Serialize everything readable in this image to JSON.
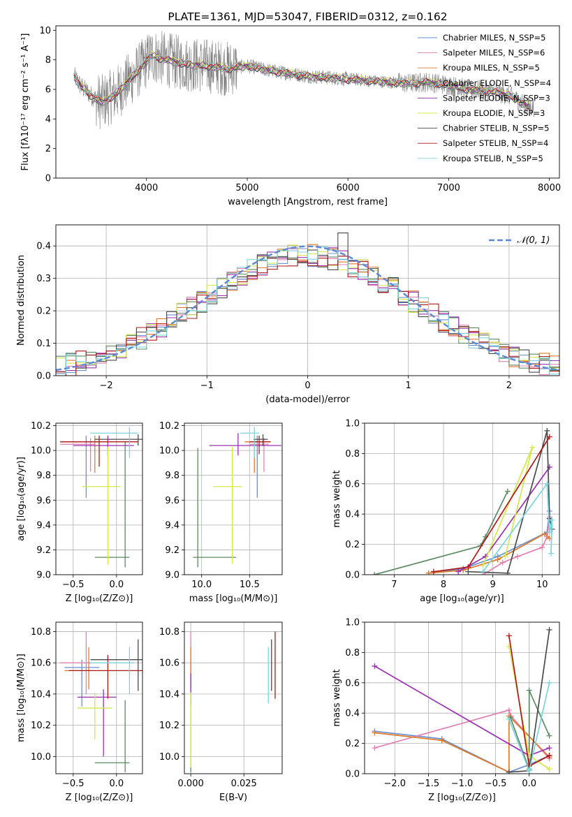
{
  "colors": [
    "#6a8ed0",
    "#e27fb0",
    "#e07a28",
    "#5c8a62",
    "#9930b0",
    "#d4e84a",
    "#4a4a4a",
    "#b01818",
    "#7ad4de"
  ],
  "grid_color": "#b0b0b0",
  "chart_data": [
    {
      "type": "line",
      "title": "PLATE=1361, MJD=53047, FIBERID=0312, z=0.162",
      "xlabel": "wavelength [Angstrom, rest frame]",
      "ylabel": "Flux [fλ10⁻¹⁷ erg cm⁻² s⁻¹ A⁻¹]",
      "xlim": [
        3100,
        8100
      ],
      "ylim": [
        0,
        10.3
      ],
      "xticks": [
        4000,
        5000,
        6000,
        7000,
        8000
      ],
      "yticks": [
        0,
        2,
        4,
        6,
        8,
        10
      ],
      "grid": false,
      "legend_position": "top-right",
      "series_names": [
        "Chabrier MILES, N_SSP=5",
        "Salpeter MILES, N_SSP=6",
        "Kroupa MILES, N_SSP=5",
        "Chabrier ELODIE, N_SSP=4",
        "Salpeter ELODIE, N_SSP=3",
        "Kroupa ELODIE, N_SSP=3",
        "Chabrier STELIB, N_SSP=5",
        "Salpeter STELIB, N_SSP=4",
        "Kroupa STELIB, N_SSP=5"
      ],
      "data_color": "#808080",
      "continuum_x": [
        3280,
        3350,
        3450,
        3550,
        3700,
        3850,
        3950,
        4050,
        4200,
        4400,
        4600,
        4800,
        5000,
        5200,
        5400,
        5600,
        5800,
        6000,
        6200,
        6400,
        6600,
        6800,
        7000,
        7200,
        7400,
        7600,
        7800
      ],
      "continuum_y": [
        6.9,
        6.2,
        5.6,
        5.1,
        5.7,
        6.8,
        7.5,
        8.3,
        8.0,
        7.7,
        7.6,
        7.4,
        7.6,
        7.3,
        7.1,
        6.9,
        6.8,
        6.7,
        6.6,
        6.5,
        6.4,
        6.5,
        6.3,
        6.0,
        5.9,
        5.6,
        4.8
      ]
    },
    {
      "type": "histogram",
      "xlabel": "(data-model)/error",
      "ylabel": "Normed distribution",
      "xlim": [
        -2.5,
        2.5
      ],
      "ylim": [
        0,
        0.465
      ],
      "xticks": [
        -2,
        -1,
        0,
        1,
        2
      ],
      "yticks": [
        0.0,
        0.1,
        0.2,
        0.3,
        0.4
      ],
      "grid": true,
      "legend_position": "top-right",
      "curve_label": "𝒩(0, 1)",
      "curve_color": "#5b88d4",
      "curve": {
        "mean": 0,
        "sigma": 1
      },
      "bin_width": 0.1
    },
    {
      "type": "errorbar",
      "xlabel": "Z [log₁₀(Z/Z⊙)]",
      "ylabel": "age  [log₁₀(age/yr)]",
      "xlim": [
        -0.7,
        0.3
      ],
      "ylim": [
        9.0,
        10.22
      ],
      "xticks": [
        -0.5,
        0.0
      ],
      "yticks": [
        9.0,
        9.2,
        9.4,
        9.6,
        9.8,
        10.0,
        10.2
      ],
      "points": [
        {
          "x": -0.35,
          "y": 10.07,
          "ex": [
            0.3,
            0.1
          ],
          "ey": [
            0.45,
            0.05
          ]
        },
        {
          "x": -0.3,
          "y": 10.05,
          "ex": [
            0.35,
            0.05
          ],
          "ey": [
            0.22,
            0.05
          ]
        },
        {
          "x": -0.25,
          "y": 10.07,
          "ex": [
            0.4,
            0.05
          ],
          "ey": [
            0.25,
            0.05
          ]
        },
        {
          "x": 0.1,
          "y": 9.14,
          "ex": [
            0.35,
            0.05
          ],
          "ey": [
            0.08,
            0.93
          ]
        },
        {
          "x": -0.1,
          "y": 10.04,
          "ex": [
            0.4,
            0.3
          ],
          "ey": [
            0.08,
            0.08
          ]
        },
        {
          "x": -0.1,
          "y": 9.71,
          "ex": [
            0.3,
            0.15
          ],
          "ey": [
            0.63,
            0.32
          ]
        },
        {
          "x": 0.25,
          "y": 10.09,
          "ex": [
            0.5,
            0.05
          ],
          "ey": [
            0.05,
            0.04
          ]
        },
        {
          "x": -0.2,
          "y": 10.07,
          "ex": [
            0.45,
            0.45
          ],
          "ey": [
            0.2,
            0.05
          ]
        },
        {
          "x": 0.15,
          "y": 10.14,
          "ex": [
            0.45,
            0.1
          ],
          "ey": [
            0.2,
            0.05
          ]
        }
      ]
    },
    {
      "type": "errorbar",
      "xlabel": "mass [log₁₀(M/M⊙)]",
      "xlim": [
        9.82,
        10.84
      ],
      "ylim": [
        9.0,
        10.22
      ],
      "xticks": [
        10.0,
        10.5
      ],
      "yticks": [
        9.0,
        9.2,
        9.4,
        9.6,
        9.8,
        10.0,
        10.2
      ],
      "points": [
        {
          "x": 10.58,
          "y": 10.07,
          "ex": [
            0.1,
            0.05
          ],
          "ey": [
            0.45,
            0.05
          ]
        },
        {
          "x": 10.65,
          "y": 10.05,
          "ex": [
            0.15,
            0.05
          ],
          "ey": [
            0.22,
            0.05
          ]
        },
        {
          "x": 10.55,
          "y": 10.07,
          "ex": [
            0.1,
            0.1
          ],
          "ey": [
            0.25,
            0.05
          ]
        },
        {
          "x": 9.96,
          "y": 9.14,
          "ex": [
            0.05,
            0.4
          ],
          "ey": [
            0.08,
            0.88
          ]
        },
        {
          "x": 10.38,
          "y": 10.04,
          "ex": [
            0.3,
            0.45
          ],
          "ey": [
            0.08,
            0.1
          ]
        },
        {
          "x": 10.32,
          "y": 9.71,
          "ex": [
            0.2,
            0.1
          ],
          "ey": [
            0.62,
            0.32
          ]
        },
        {
          "x": 10.64,
          "y": 10.09,
          "ex": [
            0.1,
            0.05
          ],
          "ey": [
            0.05,
            0.04
          ]
        },
        {
          "x": 10.6,
          "y": 10.07,
          "ex": [
            0.1,
            0.12
          ],
          "ey": [
            0.1,
            0.05
          ]
        },
        {
          "x": 10.55,
          "y": 10.14,
          "ex": [
            0.15,
            0.05
          ],
          "ey": [
            0.2,
            0.05
          ]
        }
      ]
    },
    {
      "type": "line",
      "xlabel": "age  [log₁₀(age/yr)]",
      "ylabel": "mass weight",
      "xlim": [
        6.4,
        10.35
      ],
      "ylim": [
        0,
        1.0
      ],
      "xticks": [
        7,
        8,
        9,
        10
      ],
      "yticks": [
        0.0,
        0.2,
        0.4,
        0.6,
        0.8,
        1.0
      ],
      "series": [
        {
          "x": [
            7.7,
            8.4,
            9.1,
            10.1,
            10.15
          ],
          "y": [
            0.01,
            0.04,
            0.12,
            0.28,
            0.42
          ]
        },
        {
          "x": [
            8.8,
            9.2,
            9.5,
            10.0,
            10.1,
            10.15
          ],
          "y": [
            0.0,
            0.08,
            0.12,
            0.18,
            0.25,
            0.38
          ]
        },
        {
          "x": [
            7.7,
            8.4,
            9.1,
            10.05,
            10.15
          ],
          "y": [
            0.01,
            0.03,
            0.1,
            0.27,
            0.24
          ]
        },
        {
          "x": [
            6.6,
            8.75,
            8.85,
            9.3
          ],
          "y": [
            0.0,
            0.19,
            0.25,
            0.55
          ]
        },
        {
          "x": [
            8.3,
            8.85,
            10.15
          ],
          "y": [
            0.02,
            0.12,
            0.71
          ]
        },
        {
          "x": [
            8.8,
            9.8,
            9.25
          ],
          "y": [
            0.06,
            0.84,
            0.12
          ]
        },
        {
          "x": [
            8.5,
            9.3,
            10.1,
            10.15,
            10.2
          ],
          "y": [
            0.02,
            0.01,
            0.95,
            0.37,
            0.3
          ]
        },
        {
          "x": [
            7.8,
            8.5,
            10.15
          ],
          "y": [
            0.02,
            0.05,
            0.91
          ]
        },
        {
          "x": [
            8.8,
            10.1,
            10.15,
            10.2,
            10.18
          ],
          "y": [
            0.02,
            0.6,
            0.28,
            0.36,
            0.14
          ]
        }
      ]
    },
    {
      "type": "errorbar",
      "xlabel": "Z [log₁₀(Z/Z⊙)]",
      "ylabel": "mass [log₁₀(M/M⊙)]",
      "xlim": [
        -0.7,
        0.3
      ],
      "ylim": [
        9.89,
        10.86
      ],
      "xticks": [
        -0.5,
        0.0
      ],
      "yticks": [
        10.0,
        10.2,
        10.4,
        10.6,
        10.8
      ],
      "points": [
        {
          "x": -0.4,
          "y": 10.57,
          "ex": [
            0.2,
            0.2
          ],
          "ey": [
            0.25,
            0.05
          ]
        },
        {
          "x": -0.35,
          "y": 10.6,
          "ex": [
            0.3,
            0.05
          ],
          "ey": [
            0.2,
            0.2
          ]
        },
        {
          "x": -0.32,
          "y": 10.55,
          "ex": [
            0.28,
            0.05
          ],
          "ey": [
            0.12,
            0.15
          ]
        },
        {
          "x": 0.1,
          "y": 9.96,
          "ex": [
            0.35,
            0.05
          ],
          "ey": [
            0.06,
            0.4
          ]
        },
        {
          "x": -0.15,
          "y": 10.38,
          "ex": [
            0.3,
            0.15
          ],
          "ey": [
            0.38,
            0.05
          ]
        },
        {
          "x": -0.25,
          "y": 10.31,
          "ex": [
            0.2,
            0.2
          ],
          "ey": [
            0.2,
            0.1
          ]
        },
        {
          "x": 0.25,
          "y": 10.62,
          "ex": [
            0.55,
            0.05
          ],
          "ey": [
            0.2,
            0.13
          ]
        },
        {
          "x": -0.1,
          "y": 10.55,
          "ex": [
            0.45,
            0.4
          ],
          "ey": [
            0.18,
            0.1
          ]
        },
        {
          "x": 0.15,
          "y": 10.6,
          "ex": [
            0.45,
            0.05
          ],
          "ey": [
            0.2,
            0.1
          ]
        }
      ]
    },
    {
      "type": "errorbar",
      "xlabel": "E(B-V)",
      "xlim": [
        -0.003,
        0.043
      ],
      "ylim": [
        9.89,
        10.86
      ],
      "xticks": [
        0.0,
        0.025
      ],
      "yticks": [
        10.0,
        10.2,
        10.4,
        10.6,
        10.8
      ],
      "points": [
        {
          "x": 0.0,
          "y": 10.57,
          "ex": [
            0,
            0
          ],
          "ey": [
            0.25,
            0.05
          ]
        },
        {
          "x": 0.0,
          "y": 10.6,
          "ex": [
            0,
            0
          ],
          "ey": [
            0.2,
            0.2
          ]
        },
        {
          "x": 0.0,
          "y": 10.55,
          "ex": [
            0,
            0
          ],
          "ey": [
            0.12,
            0.15
          ]
        },
        {
          "x": 0.0,
          "y": 9.96,
          "ex": [
            0,
            0
          ],
          "ey": [
            0.06,
            0.4
          ]
        },
        {
          "x": 0.0,
          "y": 10.38,
          "ex": [
            0,
            0
          ],
          "ey": [
            0.05,
            0.15
          ]
        },
        {
          "x": 0.0,
          "y": 10.31,
          "ex": [
            0,
            0
          ],
          "ey": [
            0.38,
            0.1
          ]
        },
        {
          "x": 0.038,
          "y": 10.62,
          "ex": [
            0,
            0
          ],
          "ey": [
            0.2,
            0.13
          ]
        },
        {
          "x": 0.0397,
          "y": 10.55,
          "ex": [
            0,
            0
          ],
          "ey": [
            0.18,
            0.25
          ]
        },
        {
          "x": 0.0365,
          "y": 10.6,
          "ex": [
            0,
            0
          ],
          "ey": [
            0.26,
            0.1
          ]
        }
      ]
    },
    {
      "type": "line",
      "xlabel": "Z [log₁₀(Z/Z⊙)]",
      "ylabel": "mass weight",
      "xlim": [
        -2.45,
        0.45
      ],
      "ylim": [
        0,
        1.0
      ],
      "xticks": [
        -2.0,
        -1.5,
        -1.0,
        -0.5,
        0.0
      ],
      "yticks": [
        0.0,
        0.2,
        0.4,
        0.6,
        0.8,
        1.0
      ],
      "series": [
        {
          "x": [
            -2.3,
            -1.3,
            -0.3,
            0.0,
            0.3
          ],
          "y": [
            0.28,
            0.23,
            0.01,
            0.06,
            0.12
          ]
        },
        {
          "x": [
            -2.3,
            -0.3,
            -0.27,
            0.3
          ],
          "y": [
            0.17,
            0.42,
            0.38,
            0.1
          ]
        },
        {
          "x": [
            -2.3,
            -1.3,
            -0.3,
            -0.3,
            0.3
          ],
          "y": [
            0.27,
            0.22,
            0.01,
            0.38,
            0.11
          ]
        },
        {
          "x": [
            -0.28,
            0.0,
            0.0,
            0.3
          ],
          "y": [
            0.37,
            0.03,
            0.55,
            0.25
          ]
        },
        {
          "x": [
            -2.3,
            0.0,
            0.3
          ],
          "y": [
            0.71,
            0.12,
            0.17
          ]
        },
        {
          "x": [
            -0.3,
            0.0,
            0.3
          ],
          "y": [
            0.84,
            0.12,
            0.03
          ]
        },
        {
          "x": [
            -0.3,
            0.0,
            0.3
          ],
          "y": [
            0.01,
            0.02,
            0.95
          ]
        },
        {
          "x": [
            -0.3,
            0.0,
            0.3
          ],
          "y": [
            0.91,
            0.05,
            0.12
          ]
        },
        {
          "x": [
            -0.3,
            0.0,
            0.3
          ],
          "y": [
            0.36,
            0.02,
            0.6
          ]
        }
      ]
    }
  ]
}
